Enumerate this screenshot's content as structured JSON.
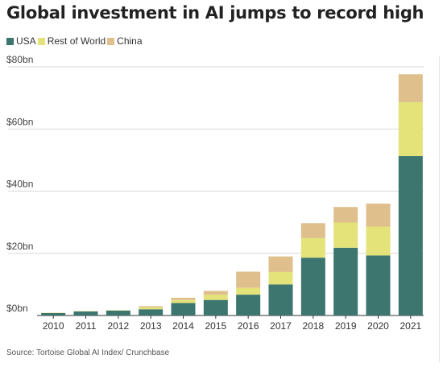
{
  "title": "Global investment in AI jumps to record high",
  "source": "Source: Tortoise Global AI Index/ Crunchbase",
  "colors": {
    "USA": "#3d756f",
    "Rest of World": "#e3e37a",
    "China": "#dfbf8c"
  },
  "chart_data": {
    "type": "bar",
    "stacked": true,
    "title": "Global investment in AI jumps to record high",
    "xlabel": "",
    "ylabel": "",
    "ylim": [
      0,
      80
    ],
    "yticks": [
      "$0bn",
      "$20bn",
      "$40bn",
      "$60bn",
      "$80bn"
    ],
    "ytick_values": [
      0,
      20,
      40,
      60,
      80
    ],
    "grid": true,
    "legend_position": "top-left",
    "categories": [
      "2010",
      "2011",
      "2012",
      "2013",
      "2014",
      "2015",
      "2016",
      "2017",
      "2018",
      "2019",
      "2020",
      "2021"
    ],
    "series": [
      {
        "name": "USA",
        "values": [
          0.8,
          1.3,
          1.6,
          2.0,
          4.0,
          5.0,
          6.7,
          10.0,
          18.6,
          21.8,
          19.3,
          51.3
        ]
      },
      {
        "name": "Rest of World",
        "values": [
          0.1,
          0.1,
          0.1,
          0.6,
          1.0,
          1.7,
          2.2,
          4.0,
          6.3,
          8.1,
          9.3,
          17.3
        ]
      },
      {
        "name": "China",
        "values": [
          0.0,
          0.0,
          0.0,
          0.4,
          0.7,
          1.2,
          5.2,
          5.0,
          4.8,
          5.0,
          7.4,
          9.0
        ]
      }
    ]
  }
}
